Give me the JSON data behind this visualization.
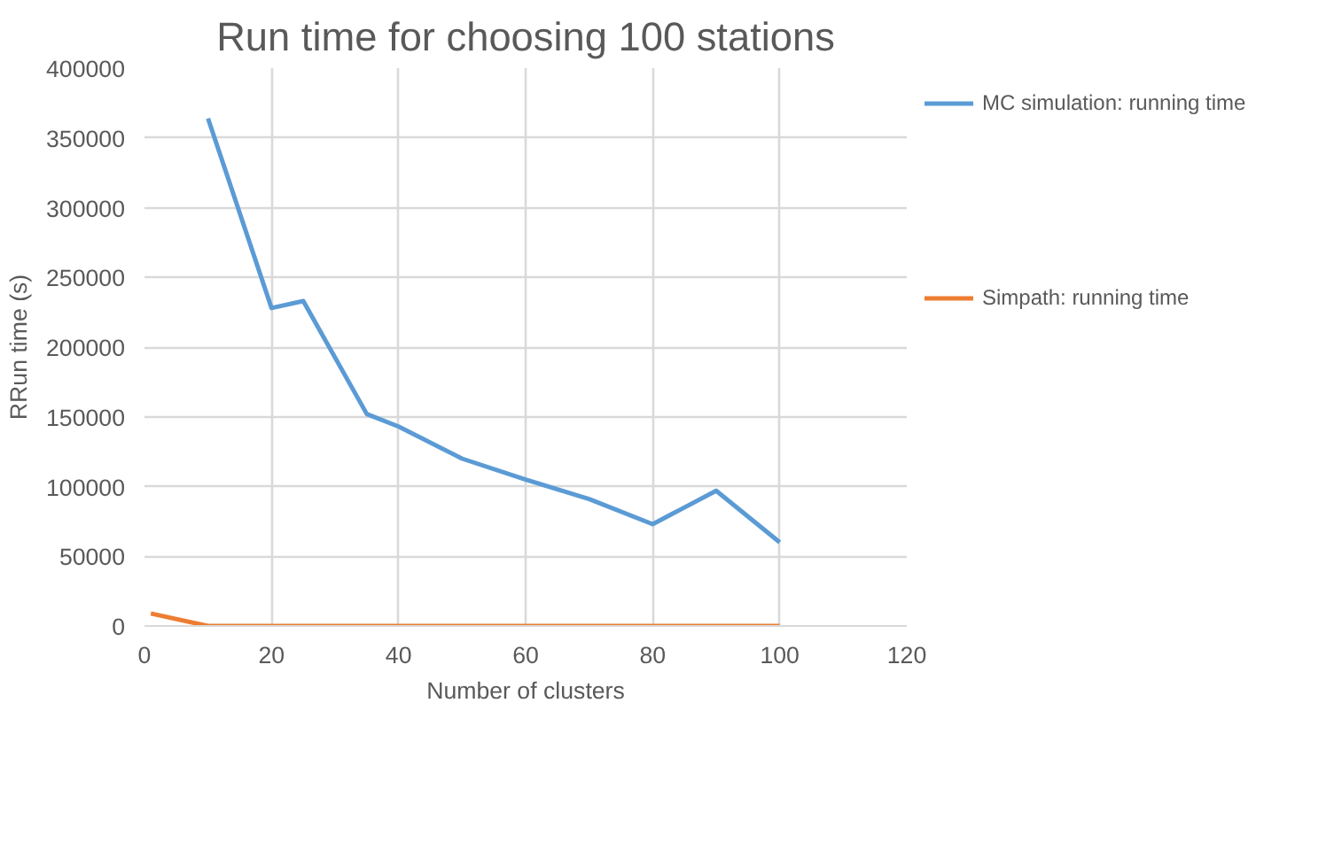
{
  "chart_data": {
    "type": "line",
    "title": "Run time for choosing 100 stations",
    "xlabel": "Number of clusters",
    "ylabel": "RRun time (s)",
    "xlim": [
      0,
      120
    ],
    "xticks": [
      0,
      20,
      40,
      60,
      80,
      100,
      120
    ],
    "ylim": [
      0,
      400000
    ],
    "yticks": [
      0,
      50000,
      100000,
      150000,
      200000,
      250000,
      300000,
      350000,
      400000
    ],
    "grid": true,
    "legend": "right",
    "marker": "none",
    "line_style": "solid",
    "series": [
      {
        "name": "MC simulation: running time",
        "color": "#5b9bd5",
        "x": [
          10,
          20,
          25,
          35,
          40,
          50,
          60,
          70,
          80,
          90,
          100
        ],
        "values": [
          364000,
          228000,
          233000,
          152000,
          143000,
          120000,
          105000,
          91000,
          73000,
          97000,
          60000
        ]
      },
      {
        "name": "Simpath: running time",
        "color": "#ed7d31",
        "x": [
          1,
          10,
          20,
          30,
          40,
          50,
          60,
          70,
          80,
          90,
          100
        ],
        "values": [
          9000,
          0,
          0,
          0,
          0,
          0,
          0,
          0,
          0,
          0,
          0
        ]
      }
    ]
  }
}
